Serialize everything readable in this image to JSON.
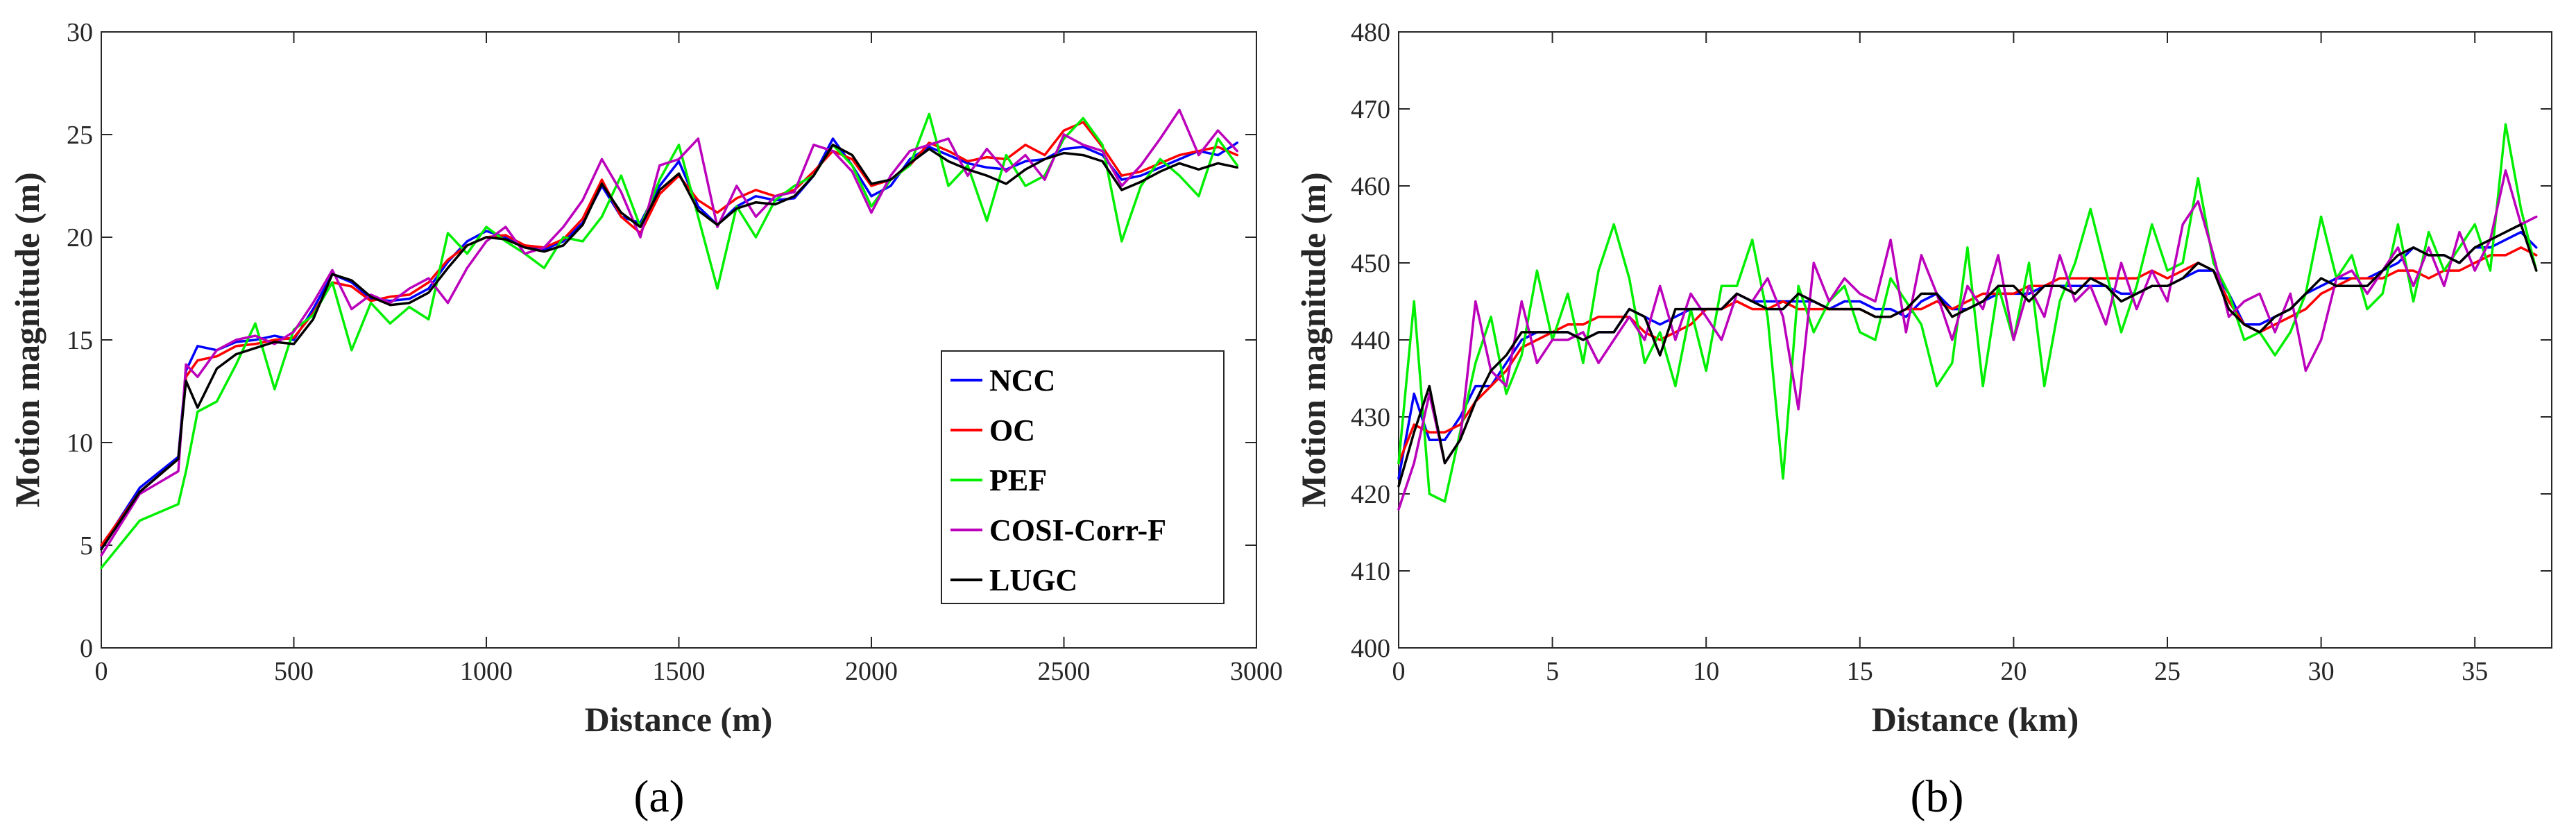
{
  "chart_data": [
    {
      "type": "line",
      "panel_label": "(a)",
      "xlabel": "Distance (m)",
      "ylabel": "Motion magnitude (m)",
      "xlim": [
        0,
        3000
      ],
      "ylim": [
        0,
        30
      ],
      "xticks": [
        0,
        500,
        1000,
        1500,
        2000,
        2500,
        3000
      ],
      "yticks": [
        0,
        5,
        10,
        15,
        20,
        25,
        30
      ],
      "legend": {
        "position": "right-center",
        "entries": [
          "NCC",
          "OC",
          "PEF",
          "COSI-Corr-F",
          "LUGC"
        ]
      },
      "x": [
        0,
        100,
        200,
        220,
        250,
        300,
        350,
        400,
        450,
        500,
        550,
        600,
        650,
        700,
        750,
        800,
        850,
        900,
        950,
        1000,
        1050,
        1100,
        1150,
        1200,
        1250,
        1300,
        1350,
        1400,
        1450,
        1500,
        1550,
        1600,
        1650,
        1700,
        1750,
        1800,
        1850,
        1900,
        1950,
        2000,
        2050,
        2100,
        2150,
        2200,
        2250,
        2300,
        2350,
        2400,
        2450,
        2500,
        2550,
        2600,
        2650,
        2700,
        2750,
        2800,
        2850,
        2900,
        2950
      ],
      "series": [
        {
          "name": "NCC",
          "color": "#0000ff",
          "values": [
            4.9,
            7.8,
            9.3,
            13.5,
            14.7,
            14.5,
            14.9,
            15.0,
            15.2,
            15.0,
            16.5,
            18.2,
            17.8,
            17.0,
            16.9,
            17.0,
            17.5,
            18.8,
            19.8,
            20.3,
            20.0,
            19.5,
            19.4,
            19.8,
            20.7,
            22.5,
            21.0,
            20.7,
            22.5,
            23.7,
            21.5,
            20.6,
            21.5,
            22.0,
            21.8,
            21.9,
            23.0,
            24.8,
            23.5,
            22.0,
            22.5,
            23.8,
            24.4,
            24.0,
            23.6,
            23.4,
            23.3,
            23.7,
            23.8,
            24.3,
            24.4,
            24.0,
            22.8,
            23.0,
            23.4,
            23.8,
            24.2,
            24.0,
            24.6
          ]
        },
        {
          "name": "OC",
          "color": "#ff0000",
          "values": [
            5.0,
            7.6,
            9.2,
            13.2,
            14.0,
            14.2,
            14.7,
            14.8,
            15.0,
            15.1,
            16.3,
            17.8,
            17.6,
            16.9,
            17.1,
            17.2,
            17.8,
            18.9,
            19.6,
            20.0,
            20.1,
            19.6,
            19.5,
            19.9,
            20.9,
            22.8,
            21.0,
            20.2,
            22.1,
            23.0,
            21.8,
            21.2,
            21.9,
            22.3,
            22.0,
            22.3,
            23.2,
            24.2,
            23.8,
            22.5,
            22.8,
            23.5,
            24.6,
            24.2,
            23.7,
            23.9,
            23.8,
            24.5,
            24.0,
            25.2,
            25.6,
            24.4,
            23.0,
            23.2,
            23.6,
            24.0,
            24.2,
            24.4,
            24.0
          ]
        },
        {
          "name": "PEF",
          "color": "#00ee00",
          "values": [
            3.9,
            6.2,
            7.0,
            8.6,
            11.5,
            12.0,
            13.8,
            15.8,
            12.6,
            15.5,
            16.2,
            17.8,
            14.5,
            16.8,
            15.8,
            16.6,
            16.0,
            20.2,
            19.2,
            20.5,
            19.8,
            19.2,
            18.5,
            20.0,
            19.8,
            21.0,
            23.0,
            20.5,
            22.8,
            24.5,
            21.0,
            17.5,
            21.5,
            20.0,
            21.8,
            22.5,
            23.0,
            24.5,
            23.5,
            21.5,
            22.8,
            23.5,
            26.0,
            22.5,
            23.5,
            20.8,
            24.0,
            22.5,
            23.0,
            24.8,
            25.8,
            24.5,
            19.8,
            22.5,
            23.8,
            23.0,
            22.0,
            24.8,
            23.5
          ]
        },
        {
          "name": "COSI-Corr-F",
          "color": "#bb00bb",
          "values": [
            4.5,
            7.5,
            8.6,
            13.8,
            13.2,
            14.5,
            15.0,
            15.2,
            14.8,
            15.4,
            16.8,
            18.4,
            16.5,
            17.2,
            16.8,
            17.5,
            18.0,
            16.8,
            18.5,
            19.8,
            20.5,
            19.2,
            19.5,
            20.5,
            21.8,
            23.8,
            22.2,
            20.0,
            23.5,
            23.8,
            24.8,
            20.5,
            22.5,
            21.0,
            22.0,
            22.2,
            24.5,
            24.2,
            23.2,
            21.2,
            23.0,
            24.2,
            24.5,
            24.8,
            23.0,
            24.3,
            23.2,
            24.0,
            22.8,
            25.0,
            24.5,
            24.2,
            22.5,
            23.5,
            24.8,
            26.2,
            24.0,
            25.2,
            24.2
          ]
        },
        {
          "name": "LUGC",
          "color": "#000000",
          "values": [
            4.8,
            7.6,
            9.2,
            13.0,
            11.7,
            13.6,
            14.3,
            14.6,
            14.9,
            14.8,
            16.0,
            18.2,
            17.9,
            17.1,
            16.7,
            16.8,
            17.3,
            18.5,
            19.6,
            20.0,
            19.9,
            19.5,
            19.3,
            19.6,
            20.6,
            22.6,
            21.2,
            20.5,
            22.3,
            23.1,
            21.3,
            20.6,
            21.4,
            21.7,
            21.6,
            22.0,
            23.0,
            24.5,
            24.0,
            22.6,
            22.8,
            23.6,
            24.3,
            23.7,
            23.3,
            23.0,
            22.6,
            23.3,
            23.8,
            24.1,
            24.0,
            23.7,
            22.3,
            22.7,
            23.2,
            23.6,
            23.3,
            23.6,
            23.4
          ]
        }
      ]
    },
    {
      "type": "line",
      "panel_label": "(b)",
      "xlabel": "Distance (km)",
      "ylabel": "Motion magnitude (m)",
      "xlim": [
        0,
        37.5
      ],
      "ylim": [
        400,
        480
      ],
      "xticks": [
        0,
        5,
        10,
        15,
        20,
        25,
        30,
        35
      ],
      "yticks": [
        400,
        410,
        420,
        430,
        440,
        450,
        460,
        470,
        480
      ],
      "x": [
        0,
        0.5,
        1,
        1.5,
        2,
        2.5,
        3,
        3.5,
        4,
        4.5,
        5,
        5.5,
        6,
        6.5,
        7,
        7.5,
        8,
        8.5,
        9,
        9.5,
        10,
        10.5,
        11,
        11.5,
        12,
        12.5,
        13,
        13.5,
        14,
        14.5,
        15,
        15.5,
        16,
        16.5,
        17,
        17.5,
        18,
        18.5,
        19,
        19.5,
        20,
        20.5,
        21,
        21.5,
        22,
        22.5,
        23,
        23.5,
        24,
        24.5,
        25,
        25.5,
        26,
        26.5,
        27,
        27.5,
        28,
        28.5,
        29,
        29.5,
        30,
        30.5,
        31,
        31.5,
        32,
        32.5,
        33,
        33.5,
        34,
        34.5,
        35,
        35.5,
        36,
        36.5,
        37
      ],
      "series": [
        {
          "name": "NCC",
          "color": "#0000ff",
          "values": [
            422,
            433,
            427,
            427,
            430,
            434,
            434,
            437,
            440,
            441,
            441,
            441,
            440,
            441,
            441,
            444,
            443,
            442,
            443,
            444,
            444,
            444,
            446,
            445,
            445,
            445,
            445,
            445,
            444,
            445,
            445,
            444,
            444,
            443,
            445,
            446,
            444,
            444,
            445,
            446,
            446,
            446,
            447,
            447,
            447,
            447,
            447,
            446,
            446,
            447,
            447,
            448,
            449,
            449,
            446,
            442,
            442,
            443,
            444,
            446,
            447,
            448,
            448,
            448,
            449,
            450,
            452,
            451,
            451,
            450,
            452,
            452,
            453,
            454,
            452
          ]
        },
        {
          "name": "OC",
          "color": "#ff0000",
          "values": [
            424,
            429,
            428,
            428,
            429,
            432,
            434,
            436,
            439,
            440,
            441,
            442,
            442,
            443,
            443,
            443,
            441,
            440,
            441,
            442,
            444,
            444,
            445,
            444,
            444,
            445,
            444,
            444,
            444,
            444,
            444,
            443,
            443,
            444,
            444,
            445,
            444,
            445,
            446,
            446,
            446,
            447,
            447,
            448,
            448,
            448,
            448,
            448,
            448,
            449,
            448,
            449,
            450,
            449,
            445,
            442,
            441,
            442,
            443,
            444,
            446,
            447,
            448,
            448,
            448,
            449,
            449,
            448,
            449,
            449,
            450,
            451,
            451,
            452,
            451
          ]
        },
        {
          "name": "PEF",
          "color": "#00ee00",
          "values": [
            424,
            445,
            420,
            419,
            428,
            437,
            443,
            433,
            438,
            449,
            440,
            446,
            437,
            449,
            455,
            448,
            437,
            441,
            434,
            444,
            436,
            447,
            447,
            453,
            443,
            422,
            447,
            441,
            445,
            447,
            441,
            440,
            448,
            445,
            442,
            434,
            437,
            452,
            434,
            447,
            440,
            450,
            434,
            445,
            450,
            457,
            449,
            441,
            447,
            455,
            449,
            450,
            461,
            450,
            446,
            440,
            441,
            438,
            441,
            446,
            456,
            448,
            451,
            444,
            446,
            455,
            445,
            454,
            449,
            452,
            455,
            449,
            468,
            457,
            449
          ]
        },
        {
          "name": "COSI-Corr-F",
          "color": "#bb00bb",
          "values": [
            418,
            424,
            433,
            424,
            427,
            445,
            436,
            434,
            445,
            437,
            440,
            440,
            441,
            437,
            440,
            443,
            440,
            447,
            440,
            446,
            443,
            440,
            446,
            445,
            448,
            443,
            431,
            450,
            445,
            448,
            446,
            445,
            453,
            441,
            451,
            446,
            440,
            447,
            444,
            451,
            440,
            447,
            443,
            451,
            445,
            447,
            442,
            450,
            444,
            449,
            445,
            455,
            458,
            451,
            443,
            445,
            446,
            441,
            446,
            436,
            440,
            448,
            449,
            446,
            449,
            452,
            447,
            452,
            447,
            454,
            449,
            453,
            462,
            455,
            456
          ]
        },
        {
          "name": "LUGC",
          "color": "#000000",
          "values": [
            421,
            428,
            434,
            424,
            427,
            432,
            436,
            438,
            441,
            441,
            441,
            441,
            440,
            441,
            441,
            444,
            443,
            438,
            444,
            444,
            444,
            444,
            446,
            445,
            444,
            444,
            446,
            445,
            444,
            444,
            444,
            443,
            443,
            444,
            446,
            446,
            443,
            444,
            445,
            447,
            447,
            445,
            447,
            447,
            446,
            448,
            447,
            445,
            446,
            447,
            447,
            448,
            450,
            449,
            444,
            442,
            441,
            443,
            444,
            446,
            448,
            447,
            447,
            447,
            449,
            451,
            452,
            451,
            451,
            450,
            452,
            453,
            454,
            455,
            449
          ]
        }
      ]
    }
  ]
}
